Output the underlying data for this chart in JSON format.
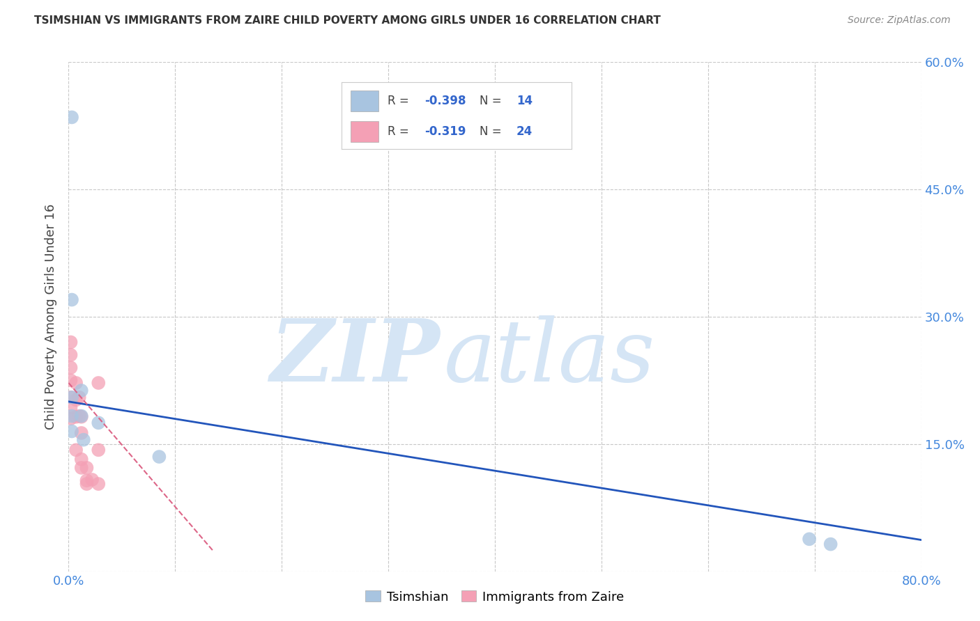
{
  "title": "TSIMSHIAN VS IMMIGRANTS FROM ZAIRE CHILD POVERTY AMONG GIRLS UNDER 16 CORRELATION CHART",
  "source": "Source: ZipAtlas.com",
  "ylabel": "Child Poverty Among Girls Under 16",
  "xlim": [
    0,
    0.8
  ],
  "ylim": [
    0,
    0.6
  ],
  "xticks": [
    0.0,
    0.1,
    0.2,
    0.3,
    0.4,
    0.5,
    0.6,
    0.7,
    0.8
  ],
  "yticks": [
    0.0,
    0.15,
    0.3,
    0.45,
    0.6
  ],
  "background_color": "#ffffff",
  "grid_color": "#c8c8c8",
  "tsimshian_color": "#a8c4e0",
  "zaire_color": "#f4a0b5",
  "tsimshian_line_color": "#2255bb",
  "zaire_line_color": "#dd6688",
  "tsimshian_x": [
    0.003,
    0.003,
    0.003,
    0.003,
    0.003,
    0.012,
    0.012,
    0.014,
    0.028,
    0.085,
    0.695,
    0.715
  ],
  "tsimshian_y": [
    0.535,
    0.32,
    0.205,
    0.183,
    0.165,
    0.213,
    0.183,
    0.155,
    0.175,
    0.135,
    0.038,
    0.032
  ],
  "zaire_x": [
    0.002,
    0.002,
    0.002,
    0.002,
    0.002,
    0.002,
    0.002,
    0.007,
    0.007,
    0.007,
    0.007,
    0.01,
    0.01,
    0.012,
    0.012,
    0.012,
    0.012,
    0.017,
    0.017,
    0.017,
    0.022,
    0.028,
    0.028,
    0.028
  ],
  "zaire_y": [
    0.27,
    0.255,
    0.24,
    0.225,
    0.205,
    0.193,
    0.18,
    0.222,
    0.202,
    0.182,
    0.143,
    0.205,
    0.183,
    0.182,
    0.163,
    0.132,
    0.122,
    0.122,
    0.107,
    0.103,
    0.108,
    0.222,
    0.143,
    0.103
  ],
  "tsimshian_trend": [
    0.0,
    0.8,
    0.2,
    0.037
  ],
  "zaire_trend": [
    0.0,
    0.135,
    0.222,
    0.025
  ],
  "watermark_zip": "ZIP",
  "watermark_atlas": "atlas",
  "watermark_color": "#d5e5f5",
  "legend_tsim_color": "#a8c4e0",
  "legend_zaire_color": "#f4a0b5",
  "legend_text_color": "#3366cc",
  "figwidth": 14.06,
  "figheight": 8.92
}
